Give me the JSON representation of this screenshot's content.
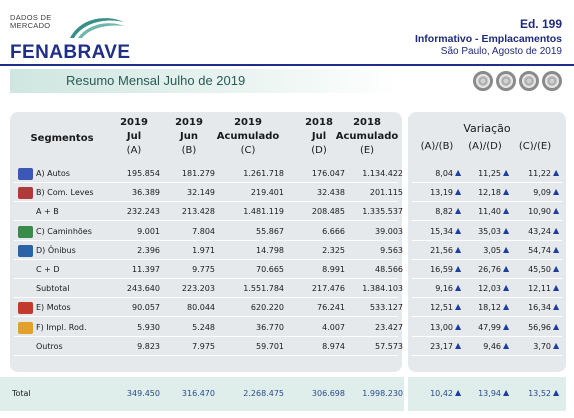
{
  "header": {
    "logo_small_line1": "DADOS DE",
    "logo_small_line2": "MERCADO",
    "brand": "FENABRAVE",
    "edition": "Ed. 199",
    "report": "Informativo - Emplacamentos",
    "location_date": "São Paulo, Agosto de 2019"
  },
  "banner": {
    "title": "Resumo Mensal Julho de 2019"
  },
  "table": {
    "segment_header": "Segmentos",
    "columns": [
      {
        "year": "2019",
        "period": "Jul",
        "key": "(A)"
      },
      {
        "year": "2019",
        "period": "Jun",
        "key": "(B)"
      },
      {
        "year": "2019",
        "period": "Acumulado",
        "key": "(C)"
      },
      {
        "year": "2018",
        "period": "Jul",
        "key": "(D)"
      },
      {
        "year": "2018",
        "period": "Acumulado",
        "key": "(E)"
      }
    ],
    "variation_title": "Variação",
    "variation_columns": [
      "(A)/(B)",
      "(A)/(D)",
      "(C)/(E)"
    ],
    "rows": [
      {
        "label": "A) Autos",
        "icon": "car-icon",
        "values": [
          "195.854",
          "181.279",
          "1.261.718",
          "176.047",
          "1.134.422"
        ],
        "variation": [
          "8,04",
          "11,25",
          "11,22"
        ]
      },
      {
        "label": "B) Com. Leves",
        "icon": "van-icon",
        "values": [
          "36.389",
          "32.149",
          "219.401",
          "32.438",
          "201.115"
        ],
        "variation": [
          "13,19",
          "12,18",
          "9,09"
        ]
      },
      {
        "label": "A + B",
        "icon": "",
        "values": [
          "232.243",
          "213.428",
          "1.481.119",
          "208.485",
          "1.335.537"
        ],
        "variation": [
          "8,82",
          "11,40",
          "10,90"
        ]
      },
      {
        "label": "C) Caminhões",
        "icon": "truck-icon",
        "values": [
          "9.001",
          "7.804",
          "55.867",
          "6.666",
          "39.003"
        ],
        "variation": [
          "15,34",
          "35,03",
          "43,24"
        ]
      },
      {
        "label": "D) Ônibus",
        "icon": "bus-icon",
        "values": [
          "2.396",
          "1.971",
          "14.798",
          "2.325",
          "9.563"
        ],
        "variation": [
          "21,56",
          "3,05",
          "54,74"
        ]
      },
      {
        "label": "C + D",
        "icon": "",
        "values": [
          "11.397",
          "9.775",
          "70.665",
          "8.991",
          "48.566"
        ],
        "variation": [
          "16,59",
          "26,76",
          "45,50"
        ]
      },
      {
        "label": "Subtotal",
        "icon": "",
        "values": [
          "243.640",
          "223.203",
          "1.551.784",
          "217.476",
          "1.384.103"
        ],
        "variation": [
          "9,16",
          "12,03",
          "12,11"
        ]
      },
      {
        "label": "E) Motos",
        "icon": "motorcycle-icon",
        "values": [
          "90.057",
          "80.044",
          "620.220",
          "76.241",
          "533.127"
        ],
        "variation": [
          "12,51",
          "18,12",
          "16,34"
        ]
      },
      {
        "label": "F) Impl. Rod.",
        "icon": "trailer-icon",
        "values": [
          "5.930",
          "5.248",
          "36.770",
          "4.007",
          "23.427"
        ],
        "variation": [
          "13,00",
          "47,99",
          "56,96"
        ]
      },
      {
        "label": "Outros",
        "icon": "",
        "values": [
          "9.823",
          "7.975",
          "59.701",
          "8.974",
          "57.573"
        ],
        "variation": [
          "23,17",
          "9,46",
          "3,70"
        ]
      }
    ],
    "total": {
      "label": "Total",
      "values": [
        "349.450",
        "316.470",
        "2.268.475",
        "306.698",
        "1.998.230"
      ],
      "variation": [
        "10,42",
        "13,94",
        "13,52"
      ]
    },
    "arrow_glyph": "▲"
  },
  "colors": {
    "brand_blue": "#1f2f86",
    "accent_teal": "#2a5a55",
    "arrow_blue": "#1f3d9c",
    "panel_gray": "#e5e9ec"
  }
}
